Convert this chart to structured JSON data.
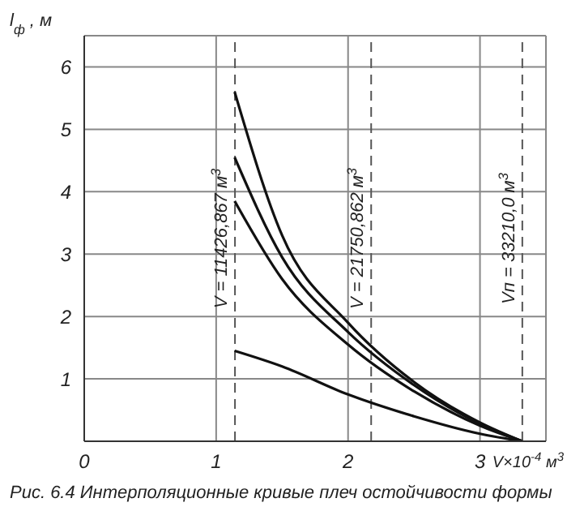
{
  "chart_data": {
    "type": "line",
    "ylabel": "l$_{ф}$ , м",
    "xlabel": "V×10$^{-4}$ м$^{3}$",
    "annotations": [
      "Рис. 6.4 Интерполяционные кривые плеч остойчивости формы",
      {
        "text": "V = 11426,867 м$^{3}$",
        "x": 1.1426867
      },
      {
        "text": "V = 21750,862 м$^{3}$",
        "x": 2.1750862
      }
    ],
    "xlim": [
      0,
      3.5
    ],
    "xticks": [
      0,
      1,
      2,
      3
    ],
    "ylim": [
      0,
      6.5
    ],
    "yticks": [
      1,
      2,
      3,
      4,
      5,
      6
    ],
    "grid": true,
    "line_style": "solid",
    "marker": "none",
    "ref_lines": [
      {
        "axis": "x",
        "value": 1.1426867,
        "line_style": "dashed",
        "color": "#555555"
      },
      {
        "axis": "x",
        "value": 2.1750862,
        "line_style": "dashed",
        "color": "#555555"
      },
      {
        "axis": "x",
        "value": 3.321,
        "label": "Vп = 33210,0 м$^{3}$",
        "line_style": "dashed",
        "color": "#555555"
      }
    ],
    "series": [
      {
        "color": "#111111",
        "x": [
          1.14,
          1.5,
          2,
          2.5,
          3,
          3.32
        ],
        "values": [
          5.6,
          3.3,
          1.9,
          0.95,
          0.3,
          0
        ]
      },
      {
        "color": "#111111",
        "x": [
          1.14,
          1.5,
          2,
          2.5,
          3,
          3.32
        ],
        "values": [
          4.55,
          2.95,
          1.75,
          0.9,
          0.28,
          0
        ]
      },
      {
        "color": "#111111",
        "x": [
          1.14,
          1.5,
          2,
          2.5,
          3,
          3.32
        ],
        "values": [
          3.85,
          2.6,
          1.55,
          0.8,
          0.25,
          0
        ]
      },
      {
        "color": "#111111",
        "x": [
          1.14,
          1.5,
          2,
          2.5,
          3,
          3.32
        ],
        "values": [
          1.45,
          1.2,
          0.75,
          0.4,
          0.12,
          0
        ]
      }
    ]
  }
}
